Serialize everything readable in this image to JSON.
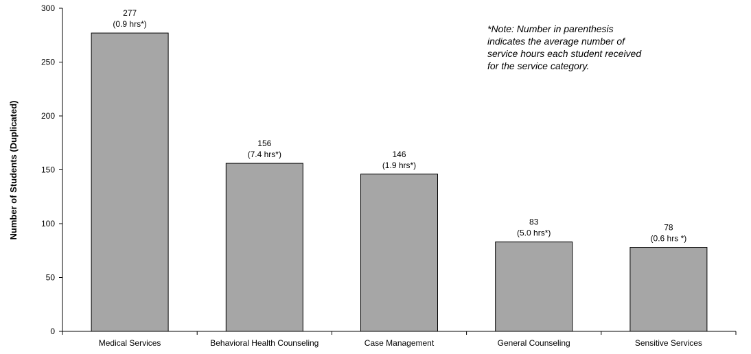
{
  "chart_data": {
    "type": "bar",
    "categories": [
      "Medical Services",
      "Behavioral Health Counseling",
      "Case Management",
      "General Counseling",
      "Sensitive Services"
    ],
    "values": [
      277,
      156,
      146,
      83,
      78
    ],
    "value_labels": [
      "277",
      "156",
      "146",
      "83",
      "78"
    ],
    "hours_labels": [
      "(0.9 hrs*)",
      "(7.4 hrs*)",
      "(1.9 hrs*)",
      "(5.0 hrs*)",
      "(0.6 hrs *)"
    ],
    "ylabel": "Number of Students (Duplicated)",
    "xlabel": "",
    "title": "",
    "ylim": [
      0,
      300
    ],
    "yticks": [
      0,
      50,
      100,
      150,
      200,
      250,
      300
    ],
    "bar_color": "#a6a6a6",
    "bar_stroke": "#000000",
    "grid": false,
    "legend": "none"
  },
  "note": {
    "lines": [
      "*Note: Number in parenthesis",
      "indicates the average number of",
      "service hours each student received",
      "for the service category."
    ]
  }
}
